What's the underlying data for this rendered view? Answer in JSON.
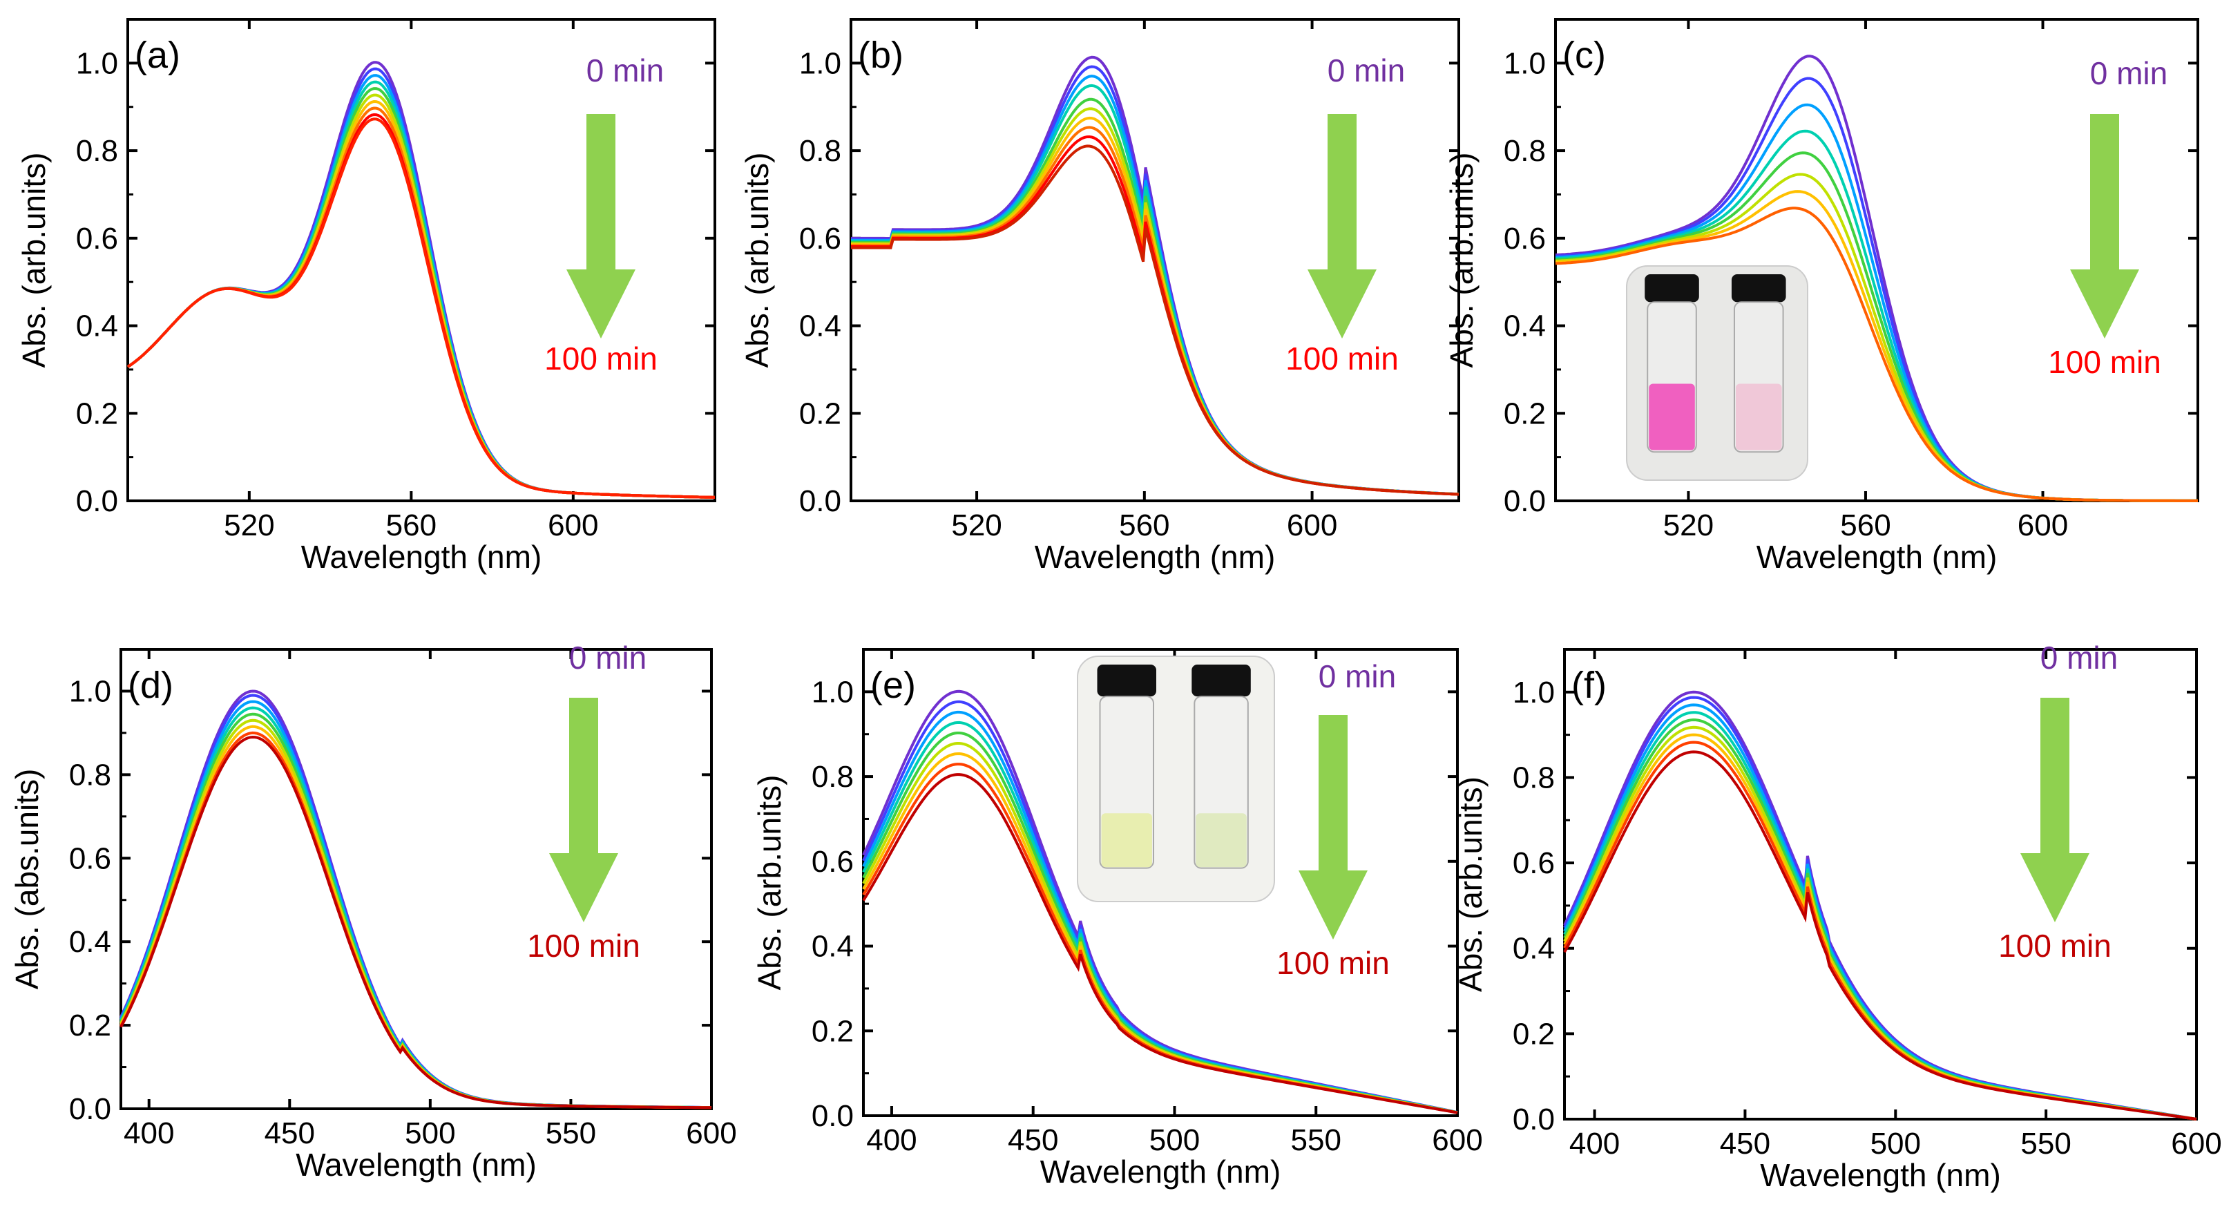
{
  "colors": {
    "arrow": "#8fd14f",
    "label_start": "#7030a0",
    "label_end": "#ff0000",
    "label_end_alt": "#c00000",
    "series": [
      "#7030d0",
      "#4040ff",
      "#00a0ff",
      "#00d0b0",
      "#40d040",
      "#c0e000",
      "#ffc000",
      "#ff7000",
      "#ff0000",
      "#c00000"
    ]
  },
  "chart_data": [
    {
      "type": "line",
      "panel_label": "(a)",
      "title": "",
      "xlabel": "Wavelength (nm)",
      "ylabel": "Abs. (arb.units)",
      "xlim": [
        490,
        635
      ],
      "ylim": [
        0,
        1.1
      ],
      "xticks": [
        "520",
        "560",
        "600"
      ],
      "yticks": [
        "0.0",
        "0.2",
        "0.4",
        "0.6",
        "0.8",
        "1.0"
      ],
      "legend_start": "0 min",
      "legend_end": "100 min",
      "curve": "rhodamine",
      "peak_x": 552,
      "series_peaks": [
        1.0,
        0.985,
        0.97,
        0.955,
        0.94,
        0.925,
        0.91,
        0.895,
        0.88,
        0.87
      ],
      "series_colors": [
        "#7030d0",
        "#4040ff",
        "#00a0ff",
        "#00d0b0",
        "#40d040",
        "#c0e000",
        "#ffc000",
        "#ff7000",
        "#ff0000",
        "#ff2000"
      ]
    },
    {
      "type": "line",
      "panel_label": "(b)",
      "title": "",
      "xlabel": "Wavelength (nm)",
      "ylabel": "Abs. (arb.units)",
      "xlim": [
        490,
        635
      ],
      "ylim": [
        0,
        1.1
      ],
      "xticks": [
        "520",
        "560",
        "600"
      ],
      "yticks": [
        "0.0",
        "0.2",
        "0.4",
        "0.6",
        "0.8",
        "1.0"
      ],
      "legend_start": "0 min",
      "legend_end": "100 min",
      "curve": "rhodamine_b",
      "peak_x": 550,
      "series_peaks": [
        1.0,
        0.98,
        0.96,
        0.94,
        0.91,
        0.89,
        0.87,
        0.85,
        0.83,
        0.81
      ],
      "series_colors": [
        "#7030d0",
        "#4040ff",
        "#00a0ff",
        "#00d0b0",
        "#40d040",
        "#c0e000",
        "#ffc000",
        "#ff7000",
        "#ff0000",
        "#d02000"
      ]
    },
    {
      "type": "line",
      "panel_label": "(c)",
      "title": "",
      "xlabel": "Wavelength (nm)",
      "ylabel": "Abs. (arb.units)",
      "xlim": [
        490,
        635
      ],
      "ylim": [
        0,
        1.1
      ],
      "xticks": [
        "520",
        "560",
        "600"
      ],
      "yticks": [
        "0.0",
        "0.2",
        "0.4",
        "0.6",
        "0.8",
        "1.0"
      ],
      "legend_start": "0 min",
      "legend_end": "100 min",
      "curve": "rhodamine_c",
      "peak_x": 550,
      "series_peaks": [
        1.0,
        0.95,
        0.89,
        0.83,
        0.78,
        0.73,
        0.69,
        0.65
      ],
      "series_colors": [
        "#7030d0",
        "#4040ff",
        "#00a0ff",
        "#00d0b0",
        "#40d040",
        "#c0e000",
        "#ffc000",
        "#ff6000"
      ],
      "inset": "vials-pink"
    },
    {
      "type": "line",
      "panel_label": "(d)",
      "title": "",
      "xlabel": "Wavelength (nm)",
      "ylabel": "Abs. (abs.units)",
      "xlim": [
        390,
        600
      ],
      "ylim": [
        0,
        1.1
      ],
      "xticks": [
        "400",
        "450",
        "500",
        "550",
        "600"
      ],
      "yticks": [
        "0.0",
        "0.2",
        "0.4",
        "0.6",
        "0.8",
        "1.0"
      ],
      "legend_start": "0 min",
      "legend_end": "100 min",
      "curve": "yellow_d",
      "peak_x": 437,
      "series_peaks": [
        1.0,
        0.99,
        0.975,
        0.96,
        0.945,
        0.93,
        0.915,
        0.9,
        0.89
      ],
      "series_colors": [
        "#7030d0",
        "#4040ff",
        "#00a0ff",
        "#00d0b0",
        "#40d040",
        "#c0e000",
        "#ffc000",
        "#ff4000",
        "#c00000"
      ]
    },
    {
      "type": "line",
      "panel_label": "(e)",
      "title": "",
      "xlabel": "Wavelength (nm)",
      "ylabel": "Abs. (arb.units)",
      "xlim": [
        390,
        600
      ],
      "ylim": [
        0,
        1.1
      ],
      "xticks": [
        "400",
        "450",
        "500",
        "550",
        "600"
      ],
      "yticks": [
        "0.0",
        "0.2",
        "0.4",
        "0.6",
        "0.8",
        "1.0"
      ],
      "legend_start": "0 min",
      "legend_end": "100 min",
      "curve": "yellow_e",
      "peak_x": 425,
      "series_peaks": [
        1.0,
        0.98,
        0.96,
        0.94,
        0.92,
        0.9,
        0.88,
        0.86,
        0.84
      ],
      "series_colors": [
        "#7030d0",
        "#4040ff",
        "#00a0ff",
        "#00d0b0",
        "#40d040",
        "#c0e000",
        "#ffc000",
        "#ff4000",
        "#c00000"
      ],
      "inset": "vials-yellow"
    },
    {
      "type": "line",
      "panel_label": "(f)",
      "title": "",
      "xlabel": "Wavelength (nm)",
      "ylabel": "Abs. (arb.units)",
      "xlim": [
        390,
        600
      ],
      "ylim": [
        0,
        1.1
      ],
      "xticks": [
        "400",
        "450",
        "500",
        "550",
        "600"
      ],
      "yticks": [
        "0.0",
        "0.2",
        "0.4",
        "0.6",
        "0.8",
        "1.0"
      ],
      "legend_start": "0 min",
      "legend_end": "100 min",
      "curve": "yellow_f",
      "peak_x": 433,
      "series_peaks": [
        1.0,
        0.99,
        0.975,
        0.96,
        0.945,
        0.93,
        0.915,
        0.9,
        0.88
      ],
      "series_colors": [
        "#7030d0",
        "#4040ff",
        "#00a0ff",
        "#00d0b0",
        "#40d040",
        "#c0e000",
        "#ffc000",
        "#ff4000",
        "#c00000"
      ]
    }
  ]
}
